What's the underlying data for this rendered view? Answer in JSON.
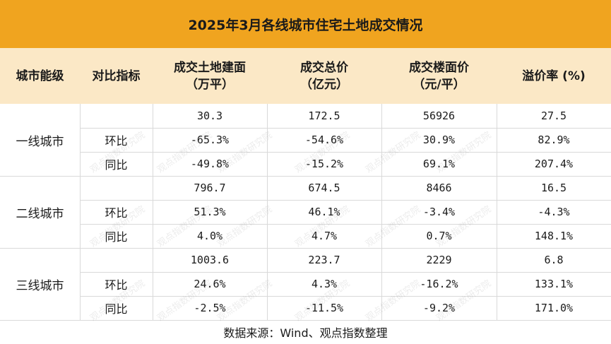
{
  "title": "2025年3月各线城市住宅土地成交情况",
  "headers": {
    "tier": "城市能级",
    "indicator": "对比指标",
    "area_l1": "成交土地建面",
    "area_l2": "（万平）",
    "price_l1": "成交总价",
    "price_l2": "（亿元）",
    "unit_l1": "成交楼面价",
    "unit_l2": "（元/平）",
    "premium": "溢价率 (%)"
  },
  "groups": [
    {
      "city": "一线城市",
      "rows": [
        {
          "indicator": "",
          "area": "30.3",
          "price": "172.5",
          "unit": "56926",
          "premium": "27.5"
        },
        {
          "indicator": "环比",
          "area": "-65.3%",
          "price": "-54.6%",
          "unit": "30.9%",
          "premium": "82.9%"
        },
        {
          "indicator": "同比",
          "area": "-49.8%",
          "price": "-15.2%",
          "unit": "69.1%",
          "premium": "207.4%"
        }
      ]
    },
    {
      "city": "二线城市",
      "rows": [
        {
          "indicator": "",
          "area": "796.7",
          "price": "674.5",
          "unit": "8466",
          "premium": "16.5"
        },
        {
          "indicator": "环比",
          "area": "51.3%",
          "price": "46.1%",
          "unit": "-3.4%",
          "premium": "-4.3%"
        },
        {
          "indicator": "同比",
          "area": "4.0%",
          "price": "4.7%",
          "unit": "0.7%",
          "premium": "148.1%"
        }
      ]
    },
    {
      "city": "三线城市",
      "rows": [
        {
          "indicator": "",
          "area": "1003.6",
          "price": "223.7",
          "unit": "2229",
          "premium": "6.8"
        },
        {
          "indicator": "环比",
          "area": "24.6%",
          "price": "4.3%",
          "unit": "-16.2%",
          "premium": "133.1%"
        },
        {
          "indicator": "同比",
          "area": "-2.5%",
          "price": "-11.5%",
          "unit": "-9.2%",
          "premium": "171.0%"
        }
      ]
    }
  ],
  "footer": "数据来源：Wind、观点指数整理",
  "watermark": "观点指数研究院",
  "colors": {
    "title_bg": "#f0a41f",
    "header_bg": "#fbe8c6",
    "grid": "#d9d9d9"
  }
}
